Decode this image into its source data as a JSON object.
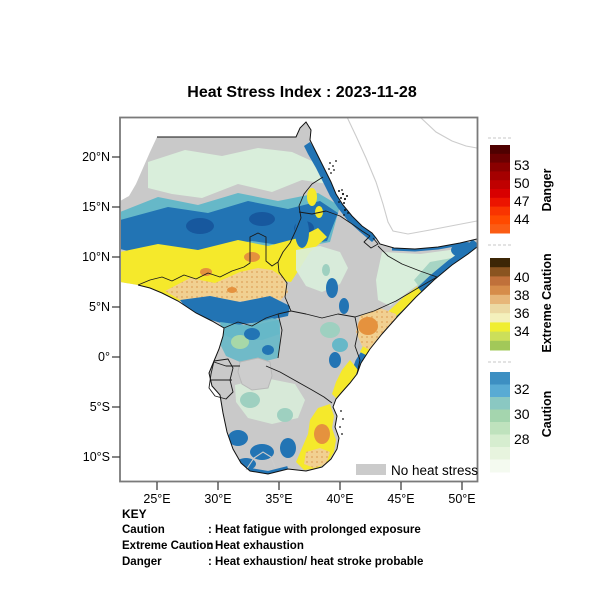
{
  "title": "Heat Stress Index : 2023-11-28",
  "map": {
    "lat_ticks": [
      "20°N",
      "15°N",
      "10°N",
      "5°N",
      "0°",
      "5°S",
      "10°S"
    ],
    "lon_ticks": [
      "25°E",
      "30°E",
      "35°E",
      "40°E",
      "45°E",
      "50°E"
    ],
    "no_heat_stress": {
      "label": "No heat stress",
      "color": "#cbcbcb"
    },
    "palette": {
      "no_data_gray": "#c9c9c9",
      "pale_green": "#d9eedb",
      "green": "#a8d8a8",
      "teal": "#66b8c8",
      "teal_light": "#9ed0c0",
      "blue": "#2274b4",
      "dark_blue": "#17589e",
      "yellow": "#f5e92b",
      "tan": "#f1d091",
      "orange": "#e5923e",
      "border_black": "#1a1a1a",
      "coast_light_gray": "#cccccc",
      "frame_gray": "#7a7a7a"
    }
  },
  "colorbar": {
    "danger": {
      "label": "Danger",
      "ticks": [
        "53",
        "50",
        "47",
        "44"
      ],
      "colors": [
        "#4f0000",
        "#6b0001",
        "#8a0000",
        "#a50000",
        "#c00000",
        "#d80000",
        "#ec1400",
        "#f93400",
        "#ff4a00",
        "#fb5c14"
      ]
    },
    "extreme_caution": {
      "label": "Extreme Caution",
      "ticks": [
        "40",
        "38",
        "36",
        "34"
      ],
      "colors": [
        "#3c2606",
        "#8a5420",
        "#c0703a",
        "#d68c4a",
        "#e7b679",
        "#ecd9a3",
        "#f4f0bc",
        "#f0ee32",
        "#ccdf5a",
        "#a2c859"
      ]
    },
    "caution": {
      "label": "Caution",
      "ticks": [
        "32",
        "30",
        "28"
      ],
      "colors": [
        "#3d8fc2",
        "#59abd4",
        "#8ac8c2",
        "#a4d5ae",
        "#bfe2bd",
        "#d6edcf",
        "#e7f4de",
        "#f4faf0"
      ]
    }
  },
  "key": {
    "heading": "KEY",
    "entries": [
      {
        "term": "Caution",
        "definition": ": Heat fatigue with prolonged exposure"
      },
      {
        "term": "Extreme Caution",
        "definition": ": Heat exhaustion"
      },
      {
        "term": "Danger",
        "definition": ": Heat exhaustion/ heat stroke probable"
      }
    ]
  }
}
